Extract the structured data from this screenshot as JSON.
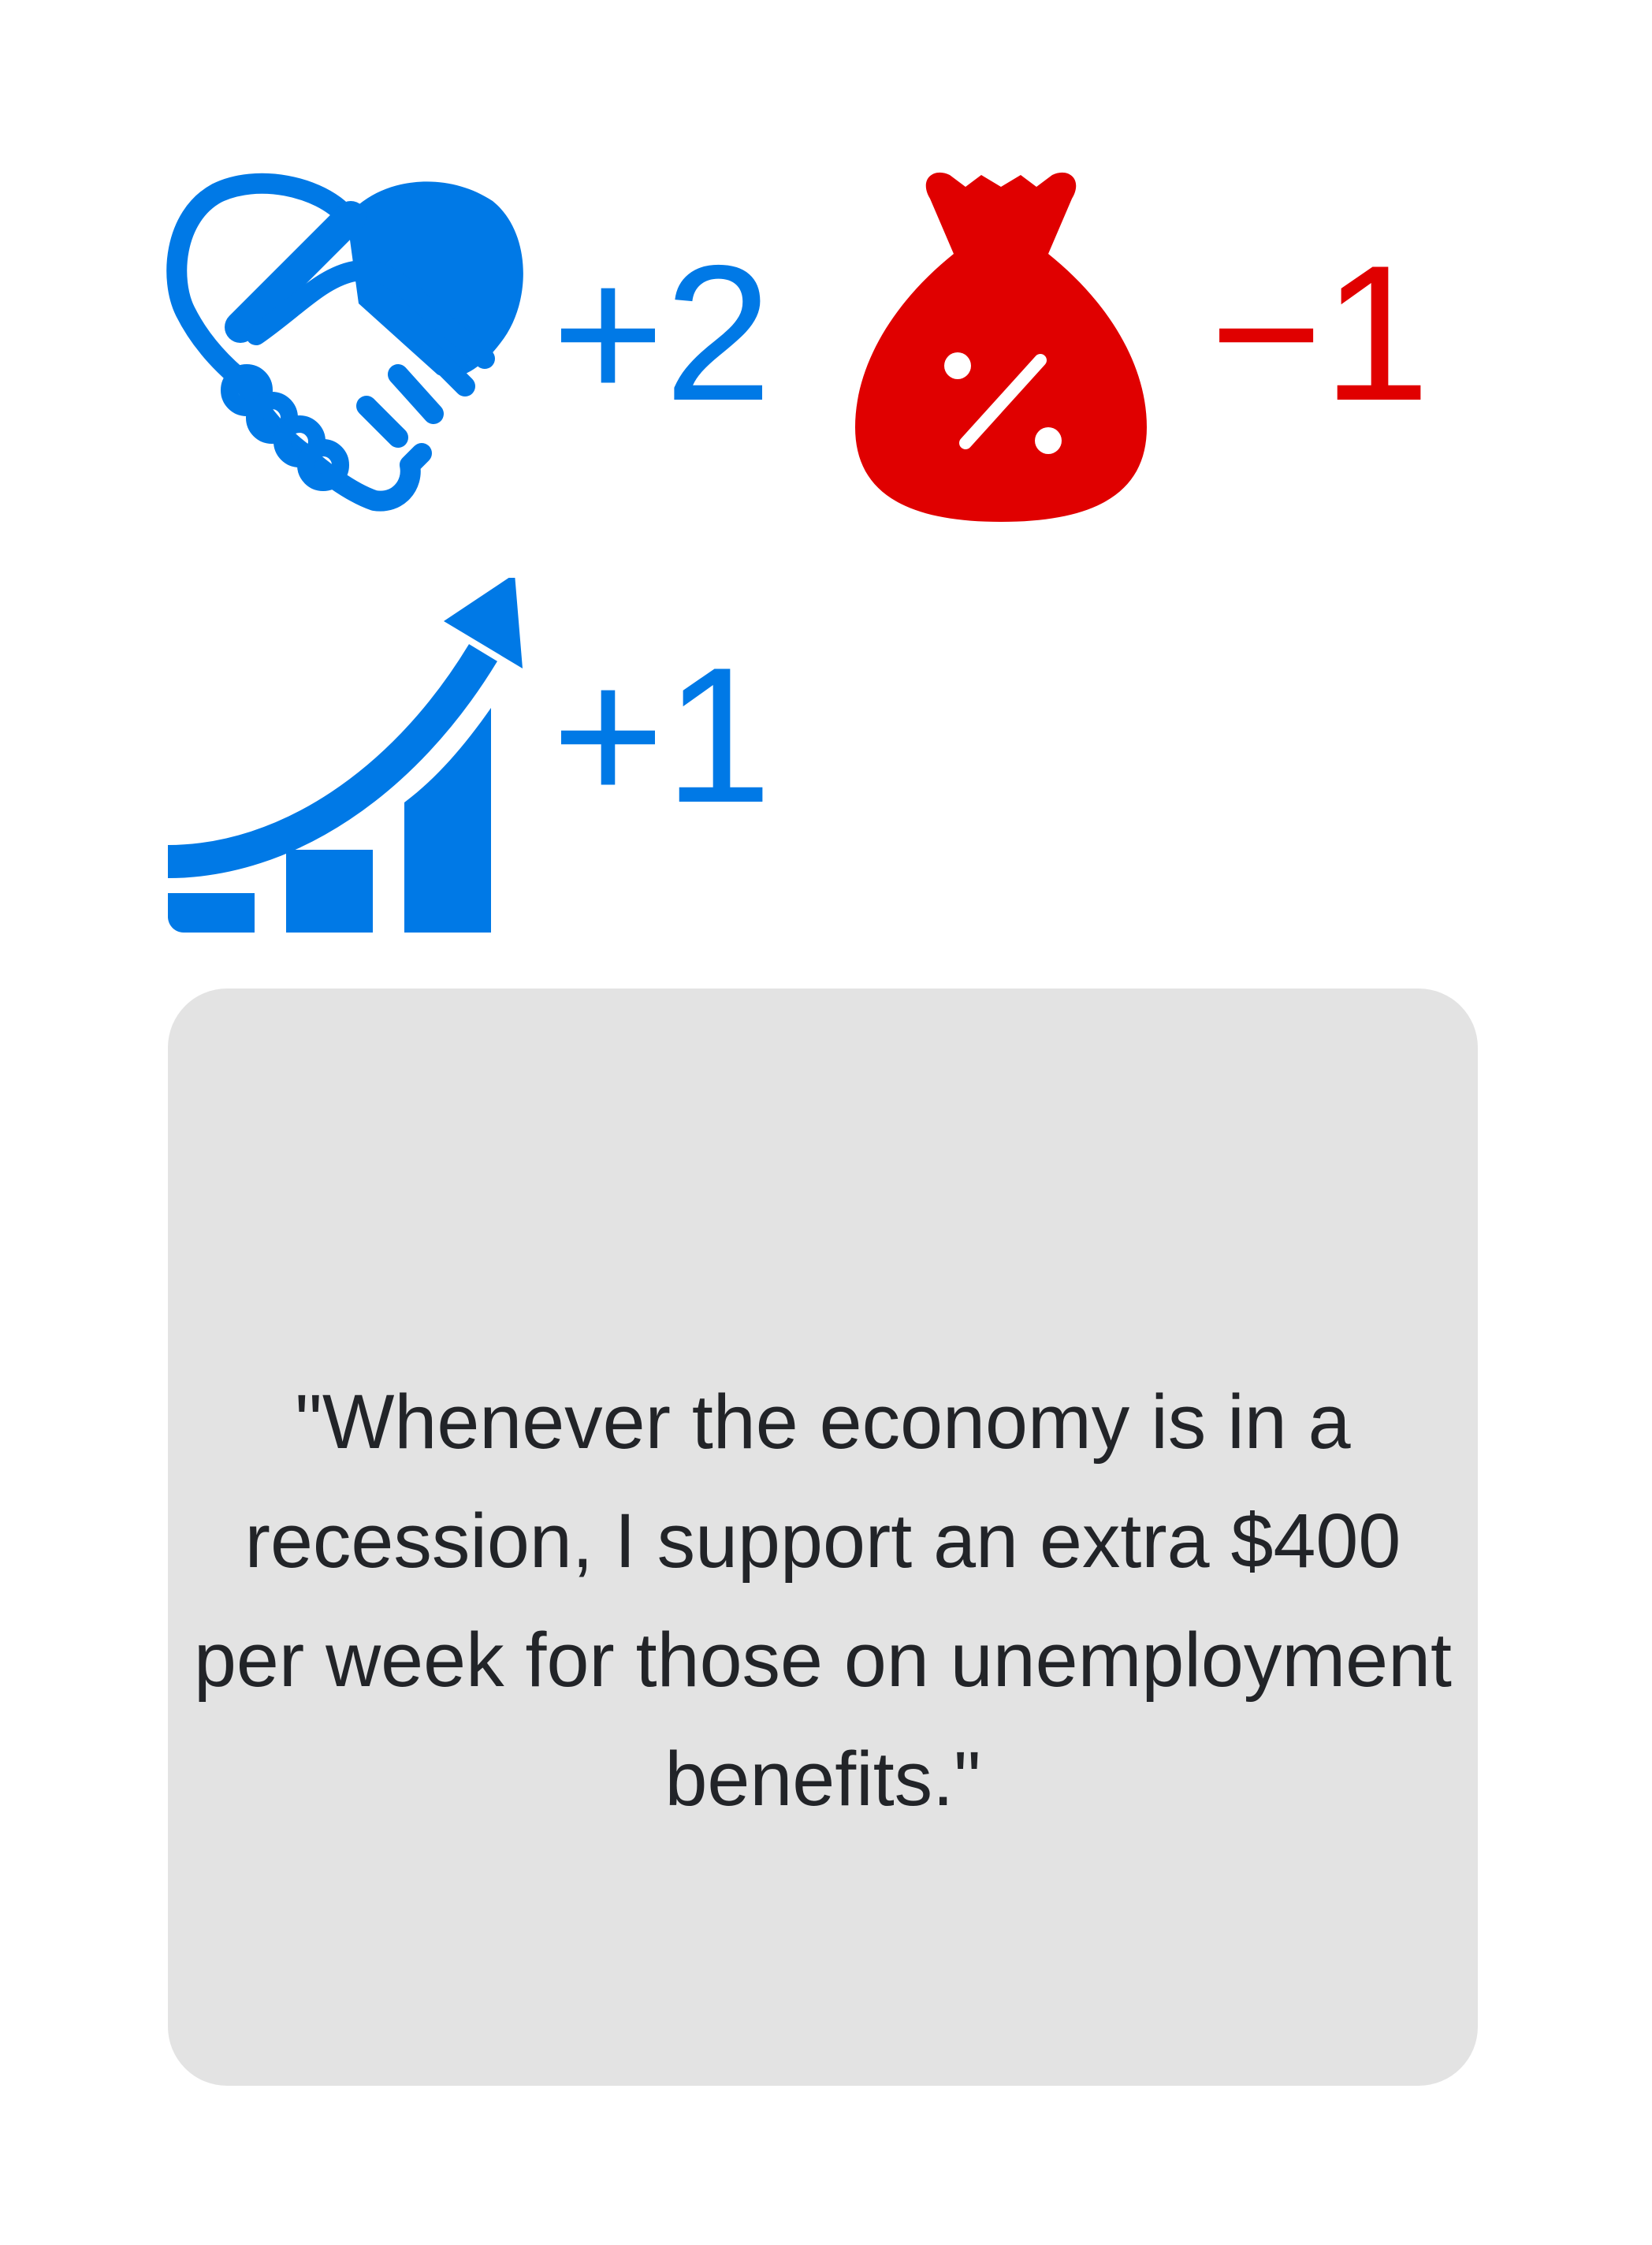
{
  "colors": {
    "positive": "#0079e6",
    "negative": "#e00000",
    "card_bg": "#e3e3e3",
    "text": "#222428"
  },
  "scores": [
    {
      "icon": "heart-handshake-icon",
      "value": "+2",
      "color": "#0079e6"
    },
    {
      "icon": "money-bag-percent-icon",
      "value": "−1",
      "color": "#e00000"
    },
    {
      "icon": "growth-chart-icon",
      "value": "+1",
      "color": "#0079e6"
    }
  ],
  "statement": "\"Whenever the economy is in a recession, I support an extra $400 per week for those on unemployment benefits.\""
}
